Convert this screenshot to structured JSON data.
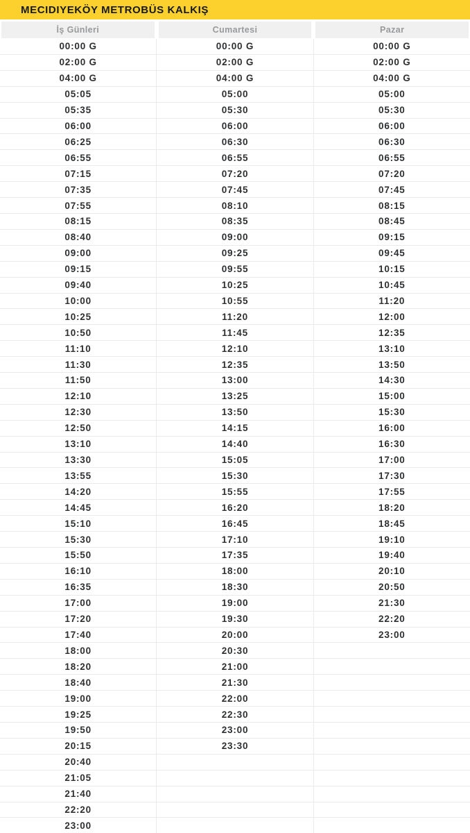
{
  "header": {
    "title": "MECIDIYEKÖY METROBÜS KALKIŞ"
  },
  "colors": {
    "accent_yellow": "#fcd12e",
    "title_text": "#17191c",
    "header_cell_bg": "#f0f0f0",
    "header_cell_text": "#97999b",
    "time_text": "#2d2f31",
    "row_border": "#eaeaea"
  },
  "table": {
    "row_count": 50,
    "columns": [
      {
        "label": "İş Günleri",
        "times": [
          "00:00 G",
          "02:00 G",
          "04:00 G",
          "05:05",
          "05:35",
          "06:00",
          "06:25",
          "06:55",
          "07:15",
          "07:35",
          "07:55",
          "08:15",
          "08:40",
          "09:00",
          "09:15",
          "09:40",
          "10:00",
          "10:25",
          "10:50",
          "11:10",
          "11:30",
          "11:50",
          "12:10",
          "12:30",
          "12:50",
          "13:10",
          "13:30",
          "13:55",
          "14:20",
          "14:45",
          "15:10",
          "15:30",
          "15:50",
          "16:10",
          "16:35",
          "17:00",
          "17:20",
          "17:40",
          "18:00",
          "18:20",
          "18:40",
          "19:00",
          "19:25",
          "19:50",
          "20:15",
          "20:40",
          "21:05",
          "21:40",
          "22:20",
          "23:00"
        ]
      },
      {
        "label": "Cumartesi",
        "times": [
          "00:00 G",
          "02:00 G",
          "04:00 G",
          "05:00",
          "05:30",
          "06:00",
          "06:30",
          "06:55",
          "07:20",
          "07:45",
          "08:10",
          "08:35",
          "09:00",
          "09:25",
          "09:55",
          "10:25",
          "10:55",
          "11:20",
          "11:45",
          "12:10",
          "12:35",
          "13:00",
          "13:25",
          "13:50",
          "14:15",
          "14:40",
          "15:05",
          "15:30",
          "15:55",
          "16:20",
          "16:45",
          "17:10",
          "17:35",
          "18:00",
          "18:30",
          "19:00",
          "19:30",
          "20:00",
          "20:30",
          "21:00",
          "21:30",
          "22:00",
          "22:30",
          "23:00",
          "23:30",
          "",
          "",
          "",
          "",
          ""
        ]
      },
      {
        "label": "Pazar",
        "times": [
          "00:00 G",
          "02:00 G",
          "04:00 G",
          "05:00",
          "05:30",
          "06:00",
          "06:30",
          "06:55",
          "07:20",
          "07:45",
          "08:15",
          "08:45",
          "09:15",
          "09:45",
          "10:15",
          "10:45",
          "11:20",
          "12:00",
          "12:35",
          "13:10",
          "13:50",
          "14:30",
          "15:00",
          "15:30",
          "16:00",
          "16:30",
          "17:00",
          "17:30",
          "17:55",
          "18:20",
          "18:45",
          "19:10",
          "19:40",
          "20:10",
          "20:50",
          "21:30",
          "22:20",
          "23:00",
          "",
          "",
          "",
          "",
          "",
          "",
          "",
          "",
          "",
          "",
          "",
          ""
        ]
      }
    ]
  }
}
